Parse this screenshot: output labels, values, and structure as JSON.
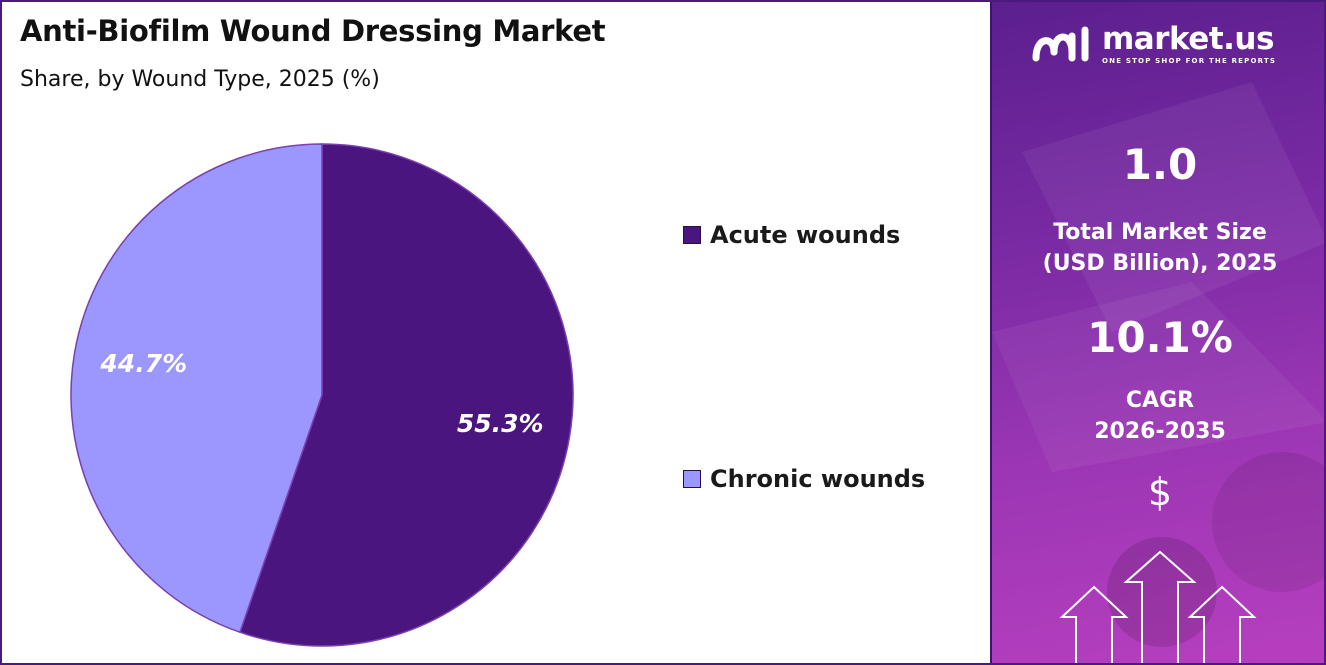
{
  "header": {
    "title": "Anti-Biofilm Wound Dressing Market",
    "subtitle": "Share, by Wound Type, 2025 (%)"
  },
  "chart_data": {
    "type": "pie",
    "title": "Anti-Biofilm Wound Dressing Market",
    "subtitle": "Share, by Wound Type, 2025 (%)",
    "slices": [
      {
        "name": "Acute wounds",
        "value": 55.3,
        "label": "55.3%",
        "color": "#4b1580"
      },
      {
        "name": "Chronic wounds",
        "value": 44.7,
        "label": "44.7%",
        "color": "#9b97ff"
      }
    ],
    "legend_position": "right"
  },
  "legend": {
    "items": [
      {
        "label": "Acute wounds",
        "color": "#4b1580"
      },
      {
        "label": "Chronic wounds",
        "color": "#9b97ff"
      }
    ]
  },
  "sidebar": {
    "logo_name": "market.us",
    "logo_tagline": "ONE STOP SHOP FOR THE REPORTS",
    "market_size_value": "1.0",
    "market_size_label_line1": "Total Market Size",
    "market_size_label_line2": "(USD Billion), 2025",
    "cagr_value": "10.1%",
    "cagr_label_line1": "CAGR",
    "cagr_label_line2": "2026-2035",
    "currency_symbol": "$"
  },
  "colors": {
    "accent_dark": "#4b1580",
    "accent_light": "#9b97ff",
    "sidebar_top": "#5b1f8e",
    "sidebar_bottom": "#b73fbf"
  }
}
